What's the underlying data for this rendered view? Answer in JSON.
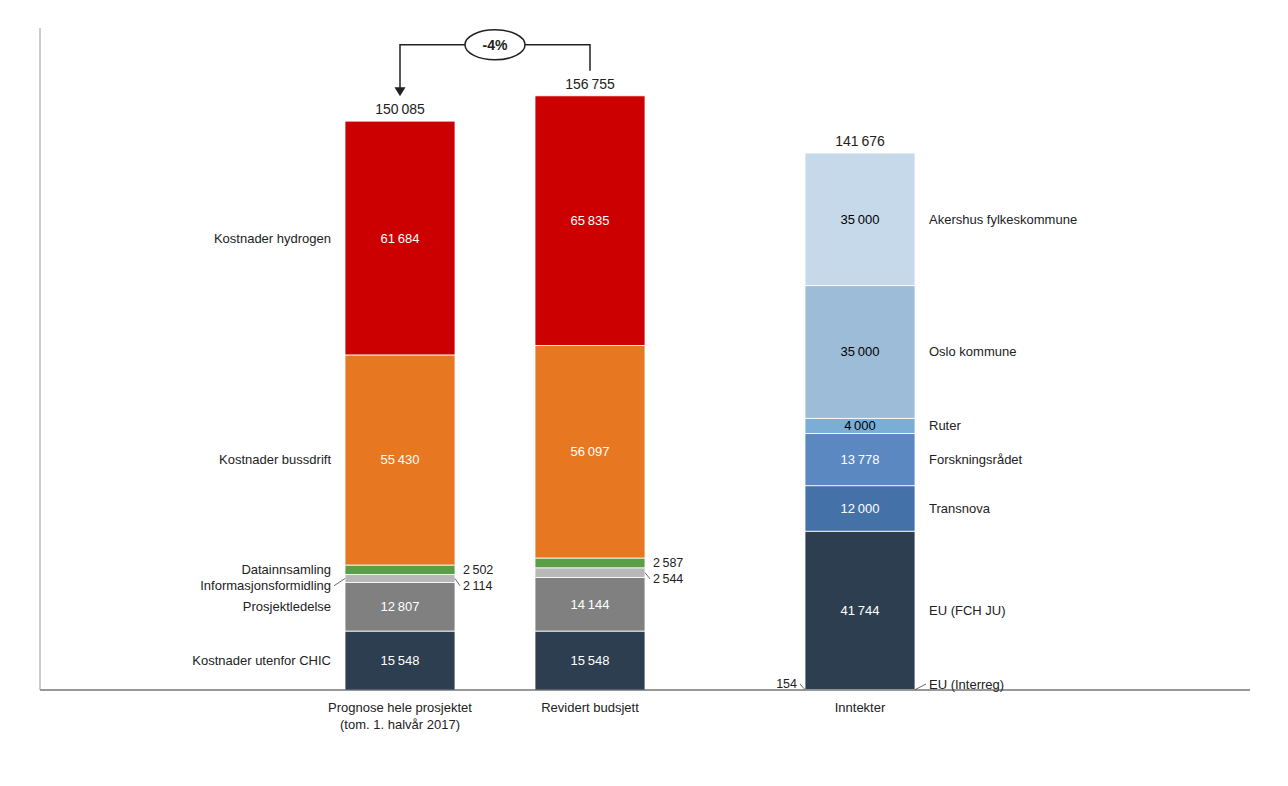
{
  "chart_data": {
    "type": "bar",
    "stacked": true,
    "data_labels": true,
    "tick_labels": "x",
    "grid": false,
    "categories": [
      "Prognose hele prosjektet\n(tom. 1. halvår 2017)",
      "Revidert budsjett",
      "Inntekter"
    ],
    "ylim": [
      0,
      174655
    ],
    "yticks": [],
    "series": [
      {
        "name": "Kostnader utenfor CHIC",
        "color": "#2d3e50",
        "values": [
          15548,
          15548,
          null
        ],
        "value_labels": [
          "15 548",
          "15 548",
          null
        ]
      },
      {
        "name": "Prosjektledelse",
        "color": "#808080",
        "values": [
          12807,
          14144,
          null
        ],
        "value_labels": [
          "12 807",
          "14 144",
          null
        ]
      },
      {
        "name": "Informasjonsformidling",
        "color": "#b8b8b8",
        "values": [
          2114,
          2544,
          null
        ],
        "value_labels": [
          "2 114",
          "2 544",
          null
        ]
      },
      {
        "name": "Datainnsamling",
        "color": "#5a9e48",
        "values": [
          2502,
          2587,
          null
        ],
        "value_labels": [
          "2 502",
          "2 587",
          null
        ]
      },
      {
        "name": "Kostnader bussdrift",
        "color": "#e87722",
        "values": [
          55430,
          56097,
          null
        ],
        "value_labels": [
          "55 430",
          "56 097",
          null
        ]
      },
      {
        "name": "Kostnader hydrogen",
        "color": "#cc0000",
        "values": [
          61684,
          65835,
          null
        ],
        "value_labels": [
          "61 684",
          "65 835",
          null
        ]
      },
      {
        "name": "EU (Interreg)",
        "color": "#2d3e50",
        "values": [
          null,
          null,
          154
        ],
        "value_labels": [
          null,
          null,
          "154"
        ]
      },
      {
        "name": "EU (FCH JU)",
        "color": "#2d3e50",
        "values": [
          null,
          null,
          41744
        ],
        "value_labels": [
          null,
          null,
          "41 744"
        ]
      },
      {
        "name": "Transnova",
        "color": "#4472a8",
        "values": [
          null,
          null,
          12000
        ],
        "value_labels": [
          null,
          null,
          "12 000"
        ]
      },
      {
        "name": "Forskningsrådet",
        "color": "#5b88c0",
        "values": [
          null,
          null,
          13778
        ],
        "value_labels": [
          null,
          null,
          "13 778"
        ]
      },
      {
        "name": "Ruter",
        "color": "#7baed4",
        "values": [
          null,
          null,
          4000
        ],
        "value_labels": [
          null,
          null,
          "4 000"
        ]
      },
      {
        "name": "Oslo kommune",
        "color": "#9dbcd8",
        "values": [
          null,
          null,
          35000
        ],
        "value_labels": [
          null,
          null,
          "35 000"
        ]
      },
      {
        "name": "Akershus fylkeskommune",
        "color": "#c5d9ea",
        "values": [
          null,
          null,
          35000
        ],
        "value_labels": [
          null,
          null,
          "35 000"
        ]
      }
    ],
    "totals": [
      150085,
      156755,
      141676
    ],
    "total_labels": [
      "150 085",
      "156 755",
      "141 676"
    ],
    "annotation": "-4%"
  }
}
